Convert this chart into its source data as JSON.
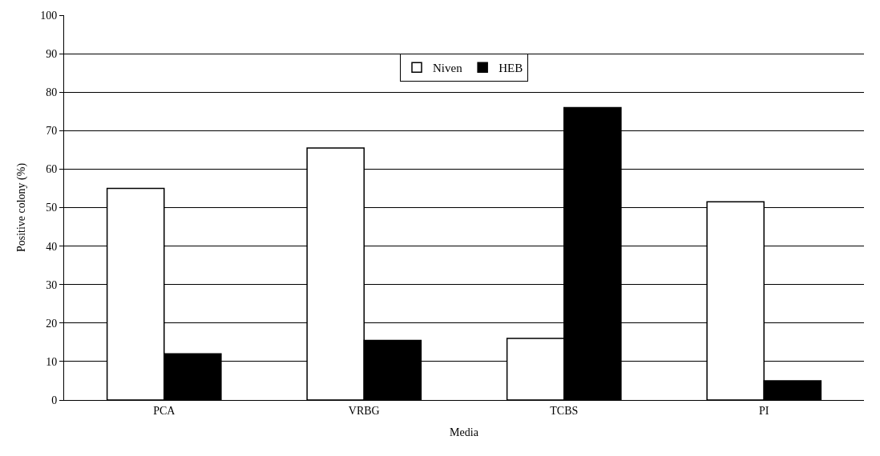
{
  "chart_data": {
    "type": "bar",
    "xlabel": "Media",
    "ylabel": "Positive colony (%)",
    "categories": [
      "PCA",
      "VRBG",
      "TCBS",
      "PI"
    ],
    "series": [
      {
        "name": "Niven",
        "color": "#ffffff",
        "values": [
          55,
          65.5,
          16,
          51.5
        ]
      },
      {
        "name": "HEB",
        "color": "#000000",
        "values": [
          12,
          15.5,
          76,
          5
        ]
      }
    ],
    "ylim": [
      0,
      100
    ],
    "yticks": [
      0,
      10,
      20,
      30,
      40,
      50,
      60,
      70,
      80,
      90,
      100
    ],
    "grid": "y",
    "legend": "top"
  }
}
